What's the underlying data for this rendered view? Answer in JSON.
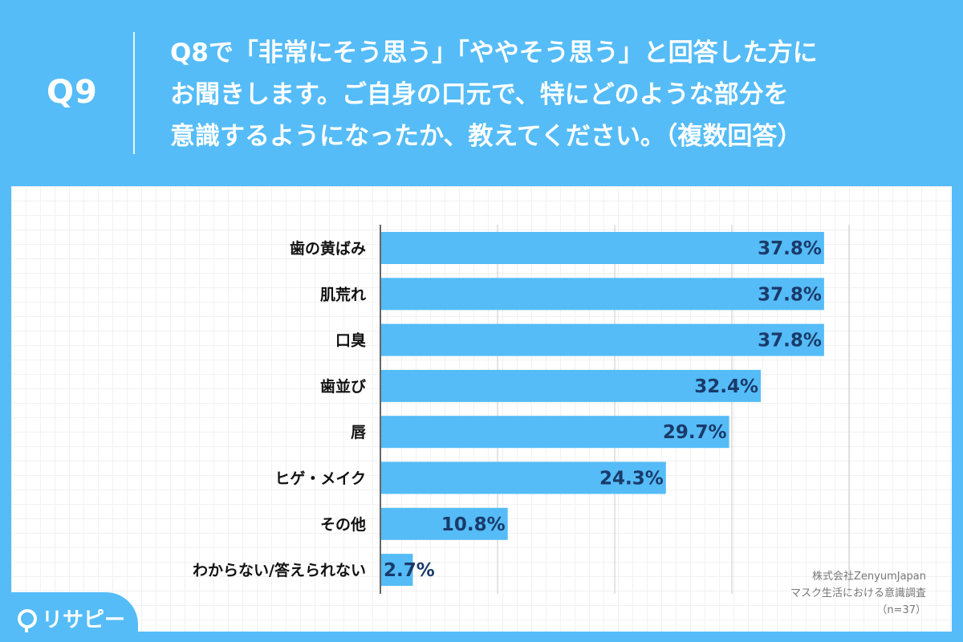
{
  "header": {
    "qnum": "Q9",
    "lines": [
      "Q8で「非常にそう思う」「ややそう思う」と回答した方に",
      "お聞きします。ご自身の口元で、特にどのような部分を",
      "意識するようになったか、教えてください。（複数回答）"
    ]
  },
  "chart_data": {
    "type": "bar",
    "orientation": "horizontal",
    "categories": [
      "歯の黄ばみ",
      "肌荒れ",
      "口臭",
      "歯並び",
      "唇",
      "ヒゲ・メイク",
      "その他",
      "わからない/答えられない"
    ],
    "values": [
      37.8,
      37.8,
      37.8,
      32.4,
      29.7,
      24.3,
      10.8,
      2.7
    ],
    "value_labels": [
      "37.8%",
      "37.8%",
      "37.8%",
      "32.4%",
      "29.7%",
      "24.3%",
      "10.8%",
      "2.7%"
    ],
    "unit": "%",
    "xlim": [
      0,
      40
    ],
    "gridlines": [
      0,
      10,
      20,
      30,
      40
    ],
    "bar_color": "#55bcf7",
    "title": "",
    "xlabel": "",
    "ylabel": ""
  },
  "credit": {
    "line1": "株式会社ZenyumJapan",
    "line2": "マスク生活における意識調査",
    "line3": "（n=37）"
  },
  "logo": {
    "text": "リサピー"
  },
  "colors": {
    "accent": "#55bcf7",
    "value_text": "#1a3a6a"
  }
}
